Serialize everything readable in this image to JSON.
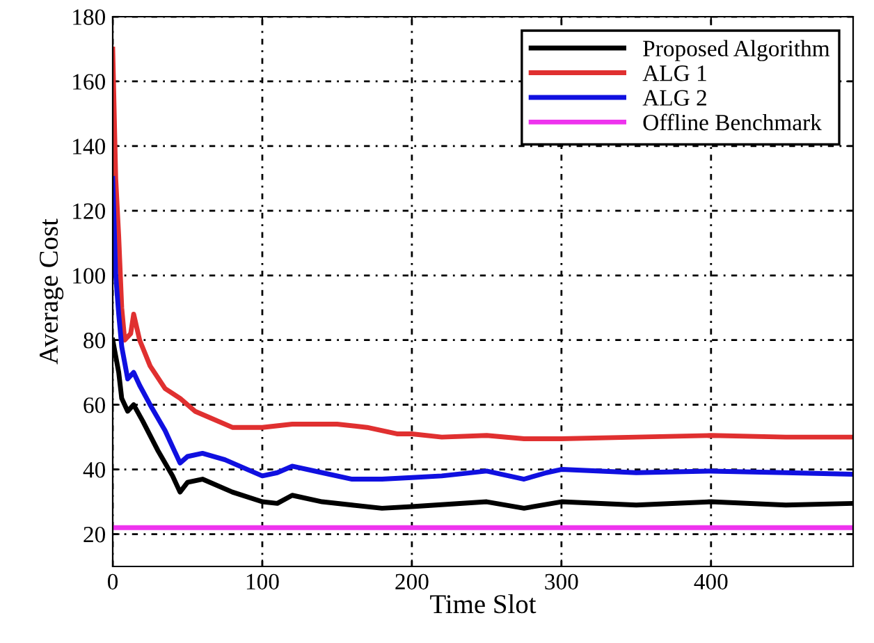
{
  "chart_data": {
    "type": "line",
    "xlabel": "Time Slot",
    "ylabel": "Average Cost",
    "xlim": [
      0,
      495
    ],
    "xticks": [
      0,
      100,
      200,
      300,
      400
    ],
    "ylim": [
      10,
      180
    ],
    "yticks": [
      20,
      40,
      60,
      80,
      100,
      120,
      140,
      160,
      180
    ],
    "grid": true,
    "legend": "top right",
    "line_style": "solid",
    "series": [
      {
        "name": "Proposed Algorithm",
        "color": "#000000",
        "x": [
          0,
          2,
          4,
          6,
          10,
          14,
          20,
          30,
          40,
          45,
          50,
          60,
          80,
          100,
          110,
          120,
          140,
          160,
          180,
          200,
          250,
          275,
          300,
          350,
          400,
          450,
          495
        ],
        "values": [
          80,
          75,
          70,
          62,
          58,
          60,
          55,
          46,
          38,
          33,
          36,
          37,
          33,
          30,
          29.5,
          32,
          30,
          29,
          28,
          28.5,
          30,
          28,
          30,
          29,
          30,
          29,
          29.5
        ]
      },
      {
        "name": "ALG 1",
        "color": "#e03030",
        "x": [
          0,
          2,
          4,
          6,
          8,
          12,
          14,
          18,
          25,
          35,
          45,
          55,
          65,
          80,
          100,
          120,
          150,
          170,
          190,
          200,
          220,
          250,
          275,
          300,
          350,
          400,
          450,
          495
        ],
        "values": [
          170,
          130,
          112,
          90,
          80,
          82,
          88,
          80,
          72,
          65,
          62,
          58,
          56,
          53,
          53,
          54,
          54,
          53,
          51,
          51,
          50,
          50.5,
          49.5,
          49.5,
          50,
          50.5,
          50,
          50
        ]
      },
      {
        "name": "ALG 2",
        "color": "#1010e0",
        "x": [
          0,
          2,
          4,
          6,
          10,
          14,
          18,
          25,
          35,
          45,
          50,
          60,
          75,
          90,
          100,
          110,
          120,
          140,
          160,
          180,
          200,
          220,
          250,
          275,
          290,
          300,
          350,
          400,
          450,
          495
        ],
        "values": [
          130,
          100,
          88,
          78,
          68,
          70,
          66,
          60,
          52,
          42,
          44,
          45,
          43,
          40,
          38,
          39,
          41,
          39,
          37,
          37,
          37.5,
          38,
          39.5,
          37,
          39,
          40,
          39,
          39.5,
          39,
          38.5
        ]
      },
      {
        "name": "Offline Benchmark",
        "color": "#ee33ee",
        "x": [
          0,
          495
        ],
        "values": [
          22,
          22
        ]
      }
    ]
  }
}
